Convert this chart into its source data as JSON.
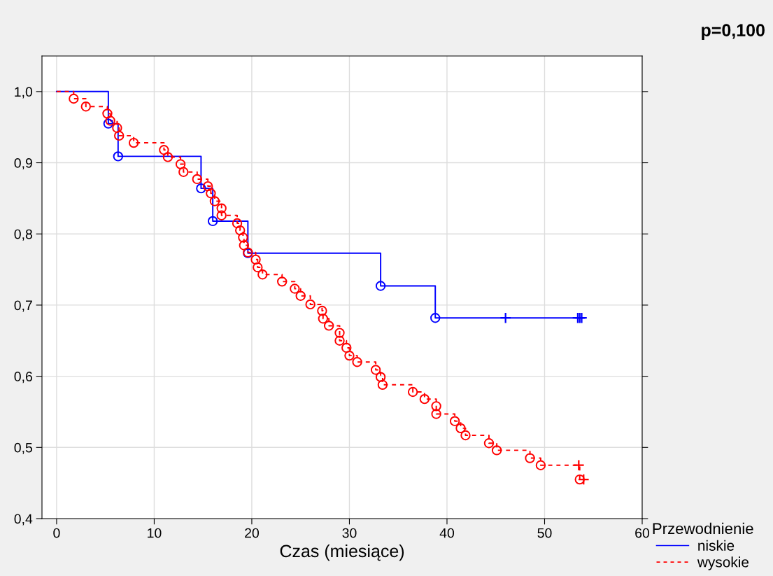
{
  "chart_data": {
    "type": "step",
    "xlabel": "Czas (miesiące)",
    "legend_title": "Przewodnienie",
    "annotations": [
      "p=0,100"
    ],
    "xlim": [
      -1.5,
      60
    ],
    "ylim": [
      0.4,
      1.05
    ],
    "xticks": [
      0,
      10,
      20,
      30,
      40,
      50,
      60
    ],
    "yticks": [
      {
        "value": 0.4,
        "label": "0,4"
      },
      {
        "value": 0.5,
        "label": "0,5"
      },
      {
        "value": 0.6,
        "label": "0,6"
      },
      {
        "value": 0.7,
        "label": "0,7"
      },
      {
        "value": 0.8,
        "label": "0,8"
      },
      {
        "value": 0.9,
        "label": "0,9"
      },
      {
        "value": 1.0,
        "label": "1,0"
      }
    ],
    "grid": true,
    "legend": "bottom right",
    "series": [
      {
        "name": "niskie",
        "color": "#0000ff",
        "line_style": "solid",
        "marker": "none",
        "x": [
          0,
          5.3,
          6.3,
          14.8,
          16.0,
          19.6,
          33.2,
          38.8,
          54.1
        ],
        "values": [
          1.0,
          0.955,
          0.909,
          0.864,
          0.818,
          0.773,
          0.727,
          0.682,
          0.682
        ]
      },
      {
        "name": "wysokie",
        "color": "#ff0000",
        "line_style": "dashed",
        "marker": "none",
        "x": [
          0,
          1.75,
          3.0,
          5.2,
          5.5,
          6.2,
          6.4,
          7.9,
          11.0,
          11.4,
          12.7,
          13.0,
          14.4,
          15.5,
          15.8,
          16.2,
          16.9,
          16.9,
          18.5,
          18.8,
          19.1,
          19.2,
          19.6,
          20.4,
          20.6,
          21.1,
          23.1,
          24.4,
          25.0,
          26.0,
          27.2,
          27.3,
          27.9,
          29.0,
          29.0,
          29.7,
          30.0,
          30.8,
          32.7,
          33.2,
          33.4,
          36.5,
          37.7,
          38.9,
          38.9,
          40.8,
          41.4,
          41.9,
          44.3,
          45.1,
          48.5,
          49.6,
          53.6,
          54.0
        ],
        "values": [
          1.0,
          0.99,
          0.979,
          0.969,
          0.959,
          0.949,
          0.938,
          0.928,
          0.918,
          0.908,
          0.898,
          0.887,
          0.877,
          0.867,
          0.857,
          0.846,
          0.836,
          0.826,
          0.815,
          0.805,
          0.795,
          0.784,
          0.774,
          0.764,
          0.753,
          0.743,
          0.733,
          0.723,
          0.713,
          0.701,
          0.692,
          0.681,
          0.671,
          0.661,
          0.65,
          0.64,
          0.629,
          0.62,
          0.609,
          0.599,
          0.588,
          0.578,
          0.568,
          0.558,
          0.547,
          0.537,
          0.527,
          0.517,
          0.506,
          0.496,
          0.485,
          0.475,
          0.455,
          0.455
        ]
      },
      {
        "type": "scatter",
        "color": "#0000ff",
        "marker": "circle",
        "x": [
          5.3,
          6.3,
          14.8,
          16.0,
          19.6,
          33.2,
          38.8
        ],
        "values": [
          0.955,
          0.909,
          0.864,
          0.818,
          0.773,
          0.727,
          0.682
        ]
      },
      {
        "type": "scatter",
        "color": "#0000ff",
        "marker": "cross",
        "x": [
          46.0,
          53.4,
          53.6,
          53.8
        ],
        "values": [
          0.682,
          0.682,
          0.682,
          0.682
        ]
      },
      {
        "type": "scatter",
        "color": "#ff0000",
        "marker": "circle",
        "x": [
          1.75,
          3.0,
          5.2,
          5.5,
          6.2,
          6.4,
          7.9,
          11.0,
          11.4,
          12.7,
          13.0,
          14.4,
          15.5,
          15.8,
          16.2,
          16.9,
          16.9,
          18.5,
          18.8,
          19.1,
          19.2,
          19.6,
          20.4,
          20.6,
          21.1,
          23.1,
          24.4,
          25.0,
          26.0,
          27.2,
          27.3,
          27.9,
          29.0,
          29.0,
          29.7,
          30.0,
          30.8,
          32.7,
          33.2,
          33.4,
          36.5,
          37.7,
          38.9,
          38.9,
          40.8,
          41.4,
          41.9,
          44.3,
          45.1,
          48.5,
          49.6,
          53.6
        ],
        "values": [
          0.99,
          0.979,
          0.969,
          0.959,
          0.949,
          0.938,
          0.928,
          0.918,
          0.908,
          0.898,
          0.887,
          0.877,
          0.867,
          0.857,
          0.846,
          0.836,
          0.826,
          0.815,
          0.805,
          0.795,
          0.784,
          0.774,
          0.764,
          0.753,
          0.743,
          0.733,
          0.723,
          0.713,
          0.701,
          0.692,
          0.681,
          0.671,
          0.661,
          0.65,
          0.64,
          0.629,
          0.62,
          0.609,
          0.599,
          0.588,
          0.578,
          0.568,
          0.558,
          0.547,
          0.537,
          0.527,
          0.517,
          0.506,
          0.496,
          0.485,
          0.475,
          0.455
        ]
      },
      {
        "type": "scatter",
        "color": "#ff0000",
        "marker": "cross",
        "x": [
          53.5,
          54.0
        ],
        "values": [
          0.475,
          0.455
        ]
      }
    ]
  }
}
